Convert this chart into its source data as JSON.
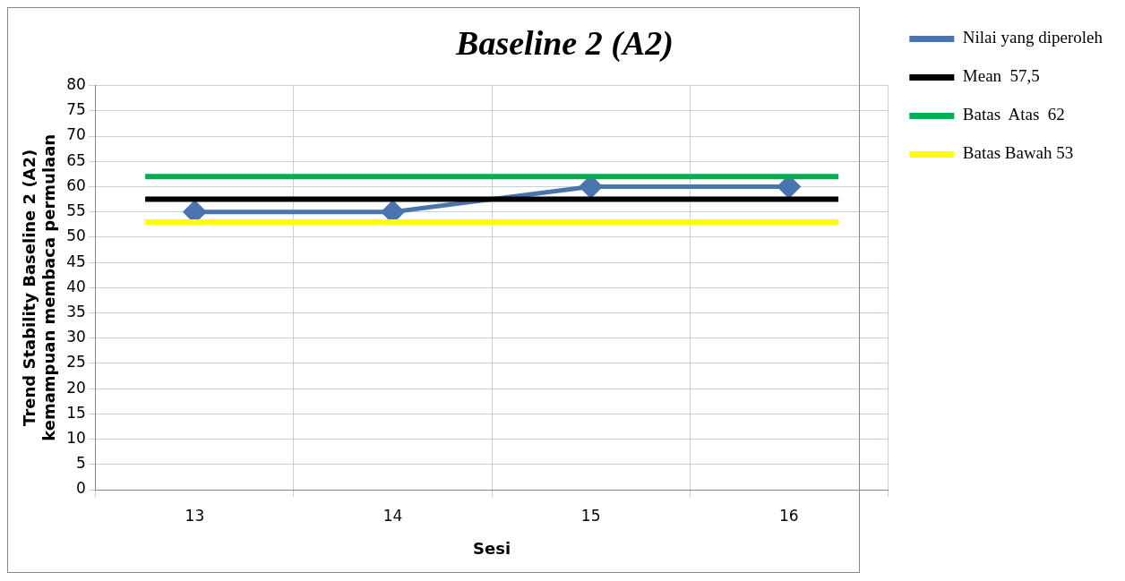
{
  "chart_data": {
    "type": "line",
    "title": "Baseline 2 (A2)",
    "xlabel": "Sesi",
    "ylabel": "Trend Stability Baseline 2 (A2)\nkemampuan membaca permulaan",
    "categories": [
      "13",
      "14",
      "15",
      "16"
    ],
    "series": [
      {
        "name": "Nilai yang diperoleh",
        "color": "#4a74ae",
        "values": [
          55,
          55,
          60,
          60
        ]
      }
    ],
    "ref_lines": [
      {
        "axis": "y",
        "value": 57.5,
        "label": "Mean  57,5",
        "color": "#000000"
      },
      {
        "axis": "y",
        "value": 62,
        "label": "Batas  Atas  62",
        "color": "#00b050"
      },
      {
        "axis": "y",
        "value": 53,
        "label": "Batas Bawah 53",
        "color": "#ffff00"
      }
    ],
    "ylim": [
      0,
      80
    ],
    "yticks": [
      0,
      5,
      10,
      15,
      20,
      25,
      30,
      35,
      40,
      45,
      50,
      55,
      60,
      65,
      70,
      75,
      80
    ],
    "grid": true,
    "legend": "right",
    "marker": "diamond",
    "line_style": "solid"
  }
}
